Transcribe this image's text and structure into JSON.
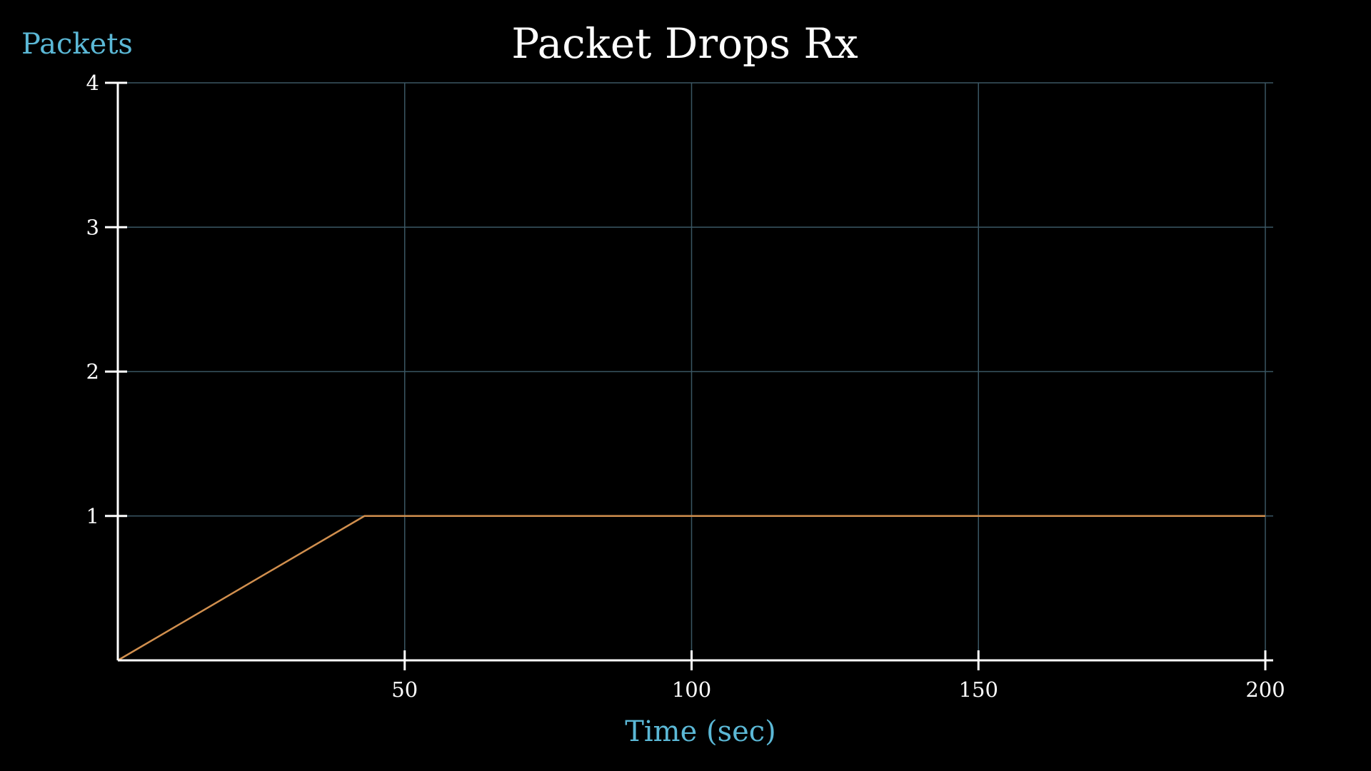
{
  "chart_data": {
    "type": "line",
    "title": "Packet Drops Rx",
    "xlabel": "Time (sec)",
    "ylabel": "Packets",
    "xlim": [
      0,
      200
    ],
    "ylim": [
      0,
      4
    ],
    "x_ticks": [
      50,
      100,
      150,
      200
    ],
    "y_ticks": [
      1,
      2,
      3,
      4
    ],
    "grid": true,
    "series": [
      {
        "color": "#d18f4e",
        "x": [
          0,
          43,
          200
        ],
        "y": [
          0,
          1,
          1
        ]
      }
    ],
    "colors": {
      "background": "#000000",
      "axis_label": "#5bb8d6",
      "grid": "#3a5663",
      "axes": "#ffffff"
    }
  }
}
